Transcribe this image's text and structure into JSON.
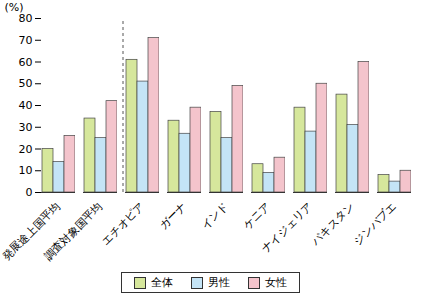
{
  "chart_data": {
    "type": "bar",
    "y_label": "(%)",
    "categories": [
      "発展途上国平均",
      "調査対象国平均",
      "エチオピア",
      "ガーナ",
      "インド",
      "ケニア",
      "ナイジェリア",
      "パキスタン",
      "ジンバブエ"
    ],
    "series": [
      {
        "name": "全体",
        "color": "#d6e79c",
        "values": [
          20,
          34,
          61,
          33,
          37,
          13,
          39,
          45,
          8
        ]
      },
      {
        "name": "男性",
        "color": "#c4e4f6",
        "values": [
          14,
          25,
          51,
          27,
          25,
          9,
          28,
          31,
          5
        ]
      },
      {
        "name": "女性",
        "color": "#f4c4cc",
        "values": [
          26,
          42,
          71,
          39,
          49,
          16,
          50,
          60,
          10
        ]
      }
    ],
    "ylim": [
      0,
      80
    ],
    "yticks": [
      0,
      10,
      20,
      30,
      40,
      50,
      60,
      70,
      80
    ],
    "grid": false,
    "legend": "bottom"
  }
}
